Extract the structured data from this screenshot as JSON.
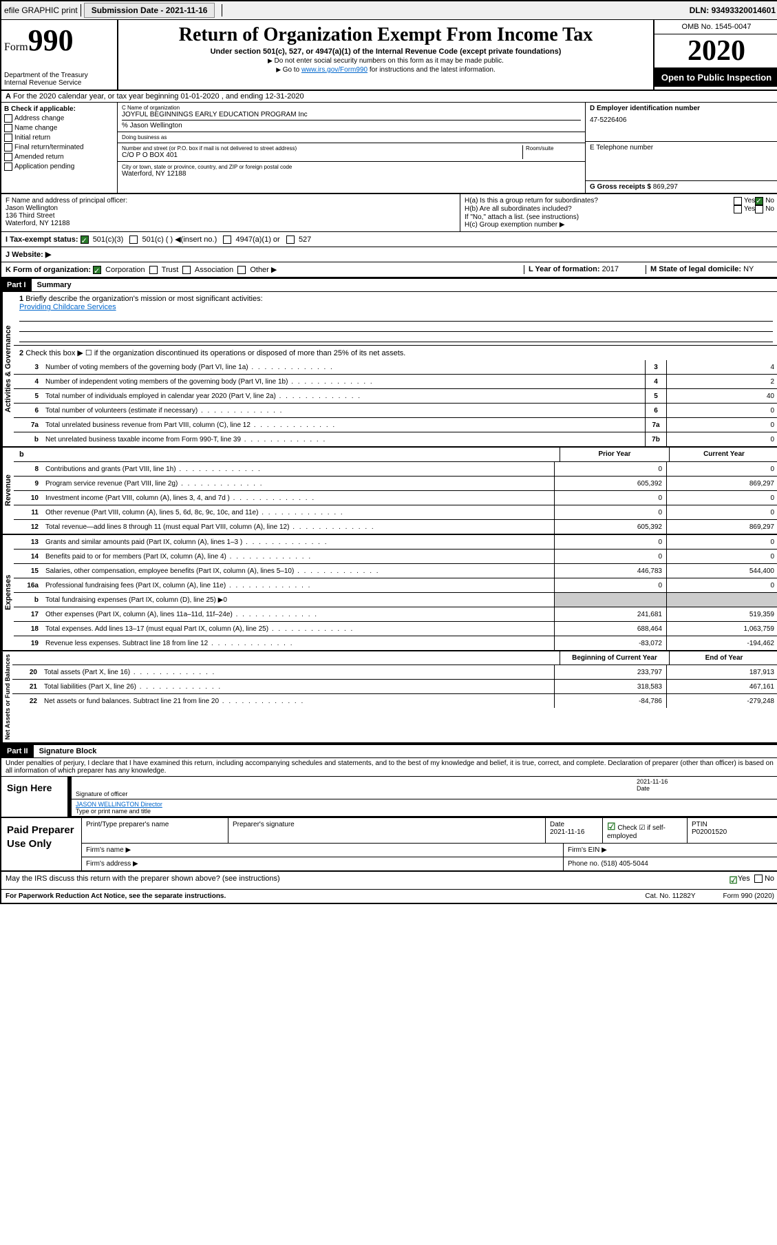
{
  "topbar": {
    "efile": "efile GRAPHIC print",
    "submission_label": "Submission Date - ",
    "submission_date": "2021-11-16",
    "dln_label": "DLN: ",
    "dln": "93493320014601"
  },
  "header": {
    "form_word": "Form",
    "form_num": "990",
    "dept": "Department of the Treasury",
    "irs": "Internal Revenue Service",
    "title": "Return of Organization Exempt From Income Tax",
    "subtitle": "Under section 501(c), 527, or 4947(a)(1) of the Internal Revenue Code (except private foundations)",
    "note1": "Do not enter social security numbers on this form as it may be made public.",
    "note2_pre": "Go to ",
    "note2_link": "www.irs.gov/Form990",
    "note2_post": " for instructions and the latest information.",
    "omb": "OMB No. 1545-0047",
    "year": "2020",
    "open": "Open to Public Inspection"
  },
  "section_a": "For the 2020 calendar year, or tax year beginning 01-01-2020     , and ending 12-31-2020",
  "col_b": {
    "label": "B Check if applicable:",
    "opts": [
      "Address change",
      "Name change",
      "Initial return",
      "Final return/terminated",
      "Amended return",
      "Application pending"
    ]
  },
  "col_c": {
    "name_label": "C Name of organization",
    "name": "JOYFUL BEGINNINGS EARLY EDUCATION PROGRAM Inc",
    "care_of": "% Jason Wellington",
    "dba_label": "Doing business as",
    "dba": "",
    "street_label": "Number and street (or P.O. box if mail is not delivered to street address)",
    "street": "C/O P O BOX 401",
    "room_label": "Room/suite",
    "city_label": "City or town, state or province, country, and ZIP or foreign postal code",
    "city": "Waterford, NY  12188"
  },
  "col_d": {
    "ein_label": "D Employer identification number",
    "ein": "47-5226406",
    "phone_label": "E Telephone number",
    "phone": "",
    "gross_label": "G Gross receipts $ ",
    "gross": "869,297"
  },
  "row_f": {
    "label": "F  Name and address of principal officer:",
    "name": "Jason Wellington",
    "street": "136 Third Street",
    "city": "Waterford, NY  12188"
  },
  "row_h": {
    "ha_label": "H(a)  Is this a group return for subordinates?",
    "hb_label": "H(b)  Are all subordinates included?",
    "hb_note": "If \"No,\" attach a list. (see instructions)",
    "hc_label": "H(c)  Group exemption number ▶"
  },
  "row_i": {
    "label": "I     Tax-exempt status:",
    "opts": [
      "501(c)(3)",
      "501(c) (  ) ◀(insert no.)",
      "4947(a)(1) or",
      "527"
    ]
  },
  "row_j": {
    "label": "J     Website: ▶"
  },
  "row_k": {
    "label": "K Form of organization:",
    "opts": [
      "Corporation",
      "Trust",
      "Association",
      "Other ▶"
    ]
  },
  "row_l": {
    "label": "L Year of formation: ",
    "val": "2017"
  },
  "row_m": {
    "label": "M State of legal domicile: ",
    "val": "NY"
  },
  "part1": {
    "header": "Part I",
    "title": "Summary",
    "line1": "Briefly describe the organization's mission or most significant activities:",
    "mission": "Providing Childcare Services",
    "line2": "Check this box ▶ ☐  if the organization discontinued its operations or disposed of more than 25% of its net assets.",
    "vert1": "Activities & Governance",
    "vert2": "Revenue",
    "vert3": "Expenses",
    "vert4": "Net Assets or Fund Balances"
  },
  "governance_rows": [
    {
      "n": "3",
      "d": "Number of voting members of the governing body (Part VI, line 1a)",
      "box": "3",
      "v": "4"
    },
    {
      "n": "4",
      "d": "Number of independent voting members of the governing body (Part VI, line 1b)",
      "box": "4",
      "v": "2"
    },
    {
      "n": "5",
      "d": "Total number of individuals employed in calendar year 2020 (Part V, line 2a)",
      "box": "5",
      "v": "40"
    },
    {
      "n": "6",
      "d": "Total number of volunteers (estimate if necessary)",
      "box": "6",
      "v": "0"
    },
    {
      "n": "7a",
      "d": "Total unrelated business revenue from Part VIII, column (C), line 12",
      "box": "7a",
      "v": "0"
    },
    {
      "n": "b",
      "d": "Net unrelated business taxable income from Form 990-T, line 39",
      "box": "7b",
      "v": "0"
    }
  ],
  "cols": {
    "prior": "Prior Year",
    "current": "Current Year",
    "begin": "Beginning of Current Year",
    "end": "End of Year"
  },
  "revenue_rows": [
    {
      "n": "8",
      "d": "Contributions and grants (Part VIII, line 1h)",
      "p": "0",
      "c": "0"
    },
    {
      "n": "9",
      "d": "Program service revenue (Part VIII, line 2g)",
      "p": "605,392",
      "c": "869,297"
    },
    {
      "n": "10",
      "d": "Investment income (Part VIII, column (A), lines 3, 4, and 7d )",
      "p": "0",
      "c": "0"
    },
    {
      "n": "11",
      "d": "Other revenue (Part VIII, column (A), lines 5, 6d, 8c, 9c, 10c, and 11e)",
      "p": "0",
      "c": "0"
    },
    {
      "n": "12",
      "d": "Total revenue—add lines 8 through 11 (must equal Part VIII, column (A), line 12)",
      "p": "605,392",
      "c": "869,297"
    }
  ],
  "expense_rows": [
    {
      "n": "13",
      "d": "Grants and similar amounts paid (Part IX, column (A), lines 1–3 )",
      "p": "0",
      "c": "0"
    },
    {
      "n": "14",
      "d": "Benefits paid to or for members (Part IX, column (A), line 4)",
      "p": "0",
      "c": "0"
    },
    {
      "n": "15",
      "d": "Salaries, other compensation, employee benefits (Part IX, column (A), lines 5–10)",
      "p": "446,783",
      "c": "544,400"
    },
    {
      "n": "16a",
      "d": "Professional fundraising fees (Part IX, column (A), line 11e)",
      "p": "0",
      "c": "0"
    },
    {
      "n": "b",
      "d": "Total fundraising expenses (Part IX, column (D), line 25) ▶0",
      "p": "",
      "c": "",
      "gray": true
    },
    {
      "n": "17",
      "d": "Other expenses (Part IX, column (A), lines 11a–11d, 11f–24e)",
      "p": "241,681",
      "c": "519,359"
    },
    {
      "n": "18",
      "d": "Total expenses. Add lines 13–17 (must equal Part IX, column (A), line 25)",
      "p": "688,464",
      "c": "1,063,759"
    },
    {
      "n": "19",
      "d": "Revenue less expenses. Subtract line 18 from line 12",
      "p": "-83,072",
      "c": "-194,462"
    }
  ],
  "net_rows": [
    {
      "n": "20",
      "d": "Total assets (Part X, line 16)",
      "p": "233,797",
      "c": "187,913"
    },
    {
      "n": "21",
      "d": "Total liabilities (Part X, line 26)",
      "p": "318,583",
      "c": "467,161"
    },
    {
      "n": "22",
      "d": "Net assets or fund balances. Subtract line 21 from line 20",
      "p": "-84,786",
      "c": "-279,248"
    }
  ],
  "part2": {
    "header": "Part II",
    "title": "Signature Block",
    "decl": "Under penalties of perjury, I declare that I have examined this return, including accompanying schedules and statements, and to the best of my knowledge and belief, it is true, correct, and complete. Declaration of preparer (other than officer) is based on all information of which preparer has any knowledge."
  },
  "sign": {
    "label": "Sign Here",
    "sig_label": "Signature of officer",
    "date_label": "Date",
    "date": "2021-11-16",
    "name": "JASON WELLINGTON  Director",
    "name_label": "Type or print name and title"
  },
  "paid": {
    "label": "Paid Preparer Use Only",
    "c1": "Print/Type preparer's name",
    "c2": "Preparer's signature",
    "c3": "Date",
    "c3v": "2021-11-16",
    "c4": "Check ☑ if self-employed",
    "c5": "PTIN",
    "c5v": "P02001520",
    "firm_name": "Firm's name    ▶",
    "firm_ein": "Firm's EIN ▶",
    "firm_addr": "Firm's address ▶",
    "phone": "Phone no. (518) 405-5044"
  },
  "discuss": {
    "q": "May the IRS discuss this return with the preparer shown above? (see instructions)",
    "yes": "Yes",
    "no": "No"
  },
  "footer": {
    "left": "For Paperwork Reduction Act Notice, see the separate instructions.",
    "mid": "Cat. No. 11282Y",
    "right": "Form 990 (2020)"
  }
}
